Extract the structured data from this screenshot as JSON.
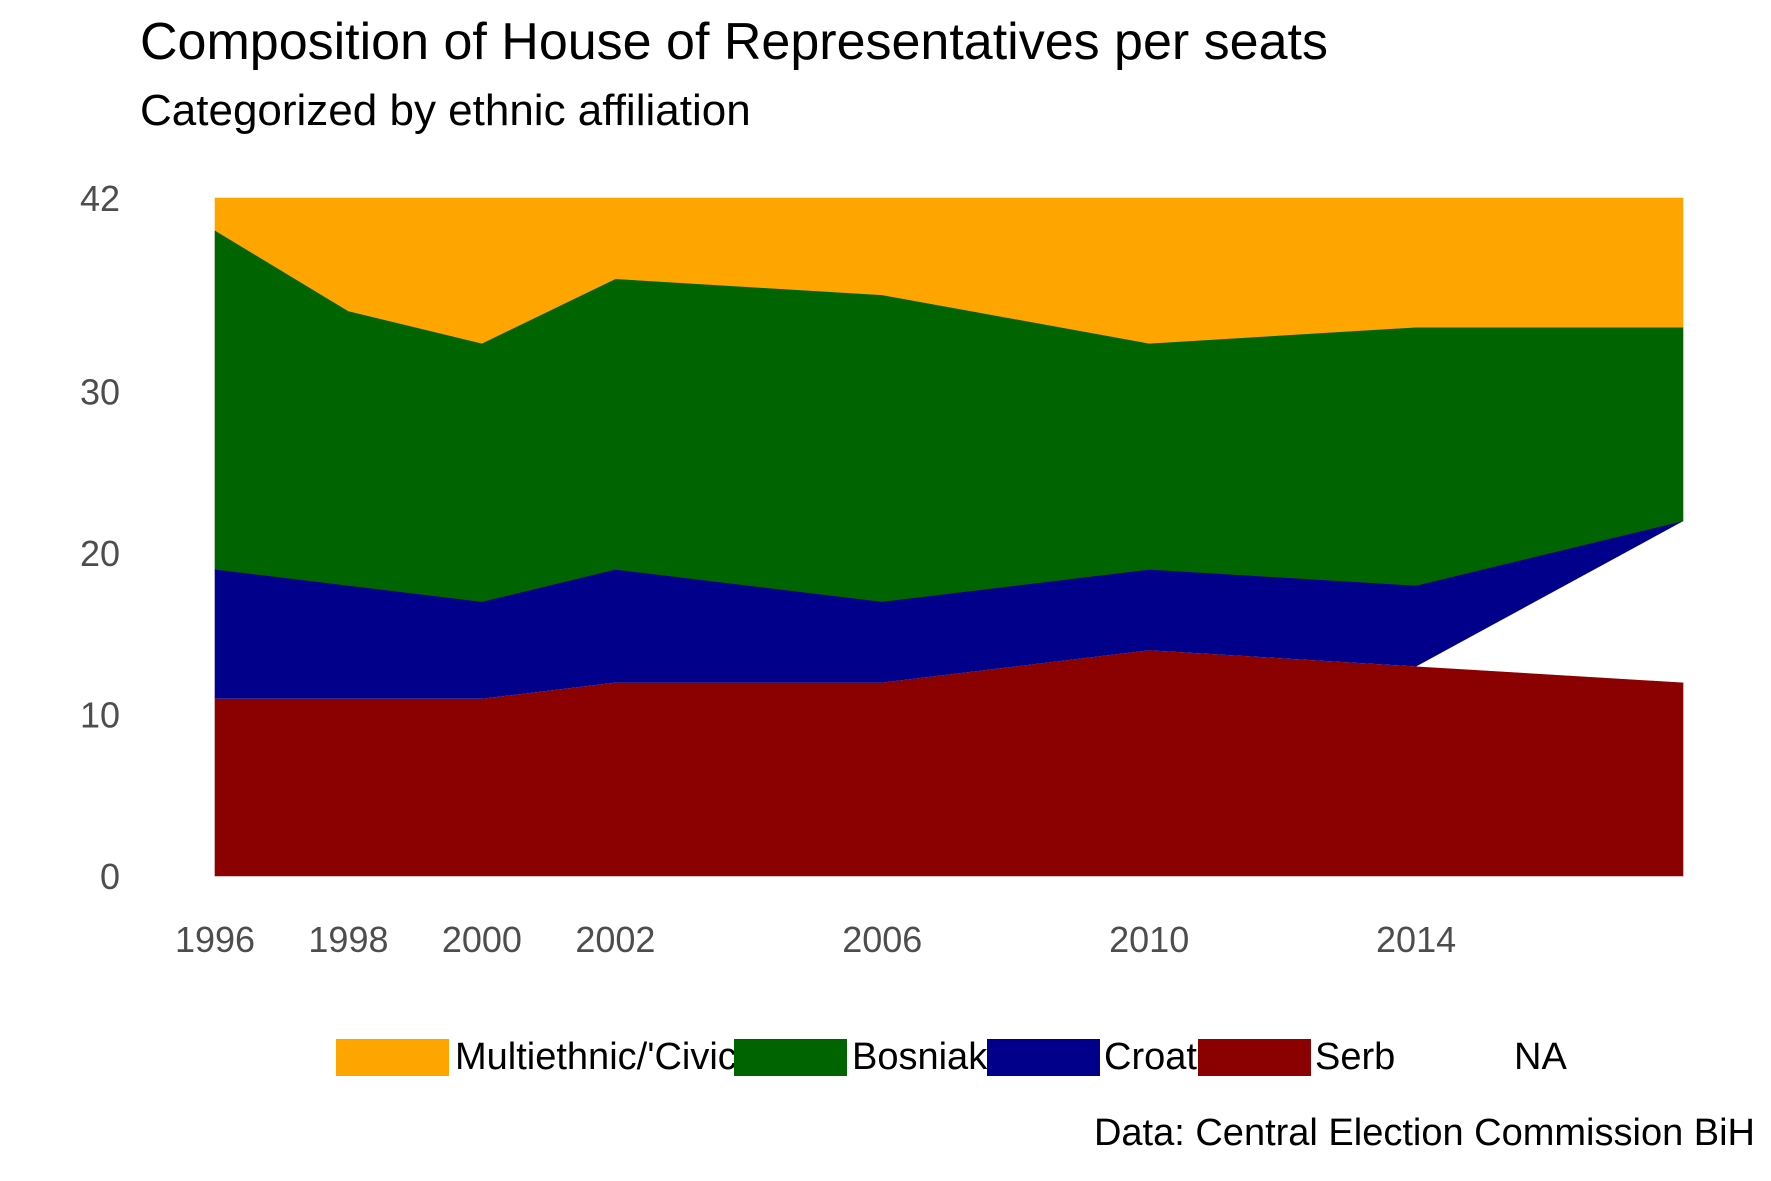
{
  "chart_data": {
    "type": "area",
    "stacked": true,
    "title": "Composition of House of Representatives per seats",
    "subtitle": "Categorized by ethnic affiliation",
    "caption": "Data: Central Election Commission BiH",
    "xlabel": "",
    "ylabel": "",
    "x": [
      1996,
      1998,
      2000,
      2002,
      2006,
      2010,
      2014,
      2018
    ],
    "x_tick_labels": [
      "1996",
      "1998",
      "2000",
      "2002",
      "2006",
      "2010",
      "2014"
    ],
    "xlim": [
      1996,
      2018
    ],
    "y_ticks": [
      0,
      10,
      20,
      30,
      42
    ],
    "ylim": [
      0,
      42
    ],
    "grid": false,
    "legend_position": "bottom",
    "series": [
      {
        "name": "Serb",
        "color": "#8B0000",
        "values": [
          11,
          11,
          11,
          12,
          12,
          14,
          13,
          12
        ]
      },
      {
        "name": "NA",
        "color": "#FFFFFF",
        "values": [
          0,
          0,
          0,
          0,
          0,
          0,
          0,
          10
        ]
      },
      {
        "name": "Croat",
        "color": "#00008B",
        "values": [
          8,
          7,
          6,
          7,
          5,
          5,
          5,
          0
        ]
      },
      {
        "name": "Bosniak",
        "color": "#006400",
        "values": [
          21,
          17,
          16,
          18,
          19,
          14,
          16,
          12
        ]
      },
      {
        "name": "Multiethnic/'Civic'",
        "color": "#FFA500",
        "values": [
          2,
          7,
          9,
          5,
          6,
          9,
          8,
          8
        ]
      }
    ],
    "legend": [
      {
        "label": "Multiethnic/'Civic'",
        "color": "#FFA500"
      },
      {
        "label": "Bosniak",
        "color": "#006400"
      },
      {
        "label": "Croat",
        "color": "#00008B"
      },
      {
        "label": "Serb",
        "color": "#8B0000"
      },
      {
        "label": "NA",
        "color": "#FFFFFF"
      }
    ]
  }
}
